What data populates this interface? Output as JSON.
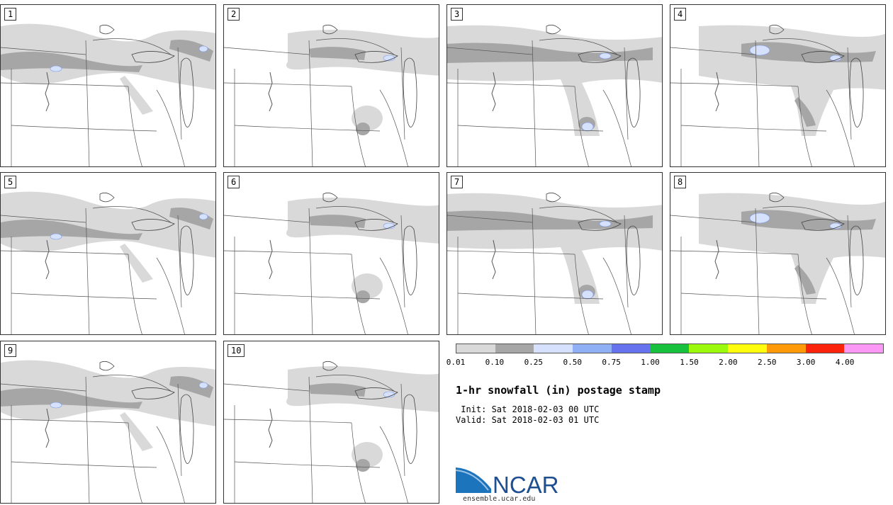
{
  "panels": [
    {
      "label": "1",
      "variant": 0
    },
    {
      "label": "2",
      "variant": 1
    },
    {
      "label": "3",
      "variant": 2
    },
    {
      "label": "4",
      "variant": 3
    },
    {
      "label": "5",
      "variant": 0
    },
    {
      "label": "6",
      "variant": 1
    },
    {
      "label": "7",
      "variant": 2
    },
    {
      "label": "8",
      "variant": 3
    },
    {
      "label": "9",
      "variant": 0
    },
    {
      "label": "10",
      "variant": 1
    }
  ],
  "colorbar": {
    "colors": [
      "#d9d9d9",
      "#a6a6a6",
      "#d6e2fd",
      "#8fb0f5",
      "#6672ee",
      "#17c13d",
      "#9af90c",
      "#fffd0e",
      "#fe9a0a",
      "#fb230c",
      "#fb97f5"
    ],
    "ticks": [
      "0.01",
      "0.10",
      "0.25",
      "0.50",
      "0.75",
      "1.00",
      "1.50",
      "2.00",
      "2.50",
      "3.00",
      "4.00"
    ]
  },
  "title": "1-hr snowfall (in) postage stamp",
  "init": " Init: Sat 2018-02-03 00 UTC",
  "valid": "Valid: Sat 2018-02-03 01 UTC",
  "logo_text": "NCAR",
  "site": "ensemble.ucar.edu"
}
